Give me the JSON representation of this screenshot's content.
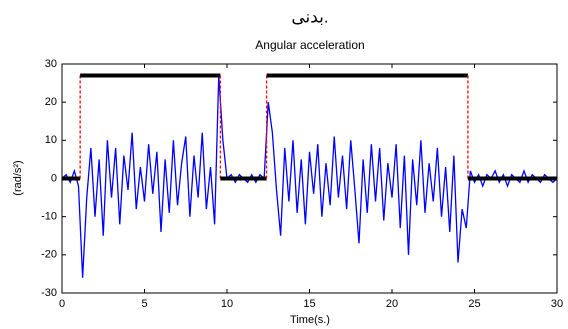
{
  "chart_data": {
    "type": "line",
    "title": "بدنی.",
    "subtitle": "Angular acceleration",
    "x_label": "Time(s.)",
    "y_label": "(rad/s²)",
    "xlim": [
      0,
      30
    ],
    "xticks": [
      0,
      5,
      10,
      15,
      20,
      25,
      30
    ],
    "ylim": [
      -30,
      30
    ],
    "yticks": [
      -30,
      -20,
      -10,
      0,
      10,
      20,
      30
    ],
    "series": [
      {
        "color": "#0000ff",
        "x": [
          0,
          0.25,
          0.5,
          0.75,
          1,
          1.25,
          1.5,
          1.75,
          2,
          2.25,
          2.5,
          2.75,
          3,
          3.25,
          3.5,
          3.75,
          4,
          4.25,
          4.5,
          4.75,
          5,
          5.25,
          5.5,
          5.75,
          6,
          6.25,
          6.5,
          6.75,
          7,
          7.25,
          7.5,
          7.75,
          8,
          8.25,
          8.5,
          8.75,
          9,
          9.25,
          9.5,
          9.75,
          10,
          10.25,
          10.5,
          10.75,
          11,
          11.25,
          11.5,
          11.75,
          12,
          12.25,
          12.5,
          12.75,
          13,
          13.25,
          13.5,
          13.75,
          14,
          14.25,
          14.5,
          14.75,
          15,
          15.25,
          15.5,
          15.75,
          16,
          16.25,
          16.5,
          16.75,
          17,
          17.25,
          17.5,
          17.75,
          18,
          18.25,
          18.5,
          18.75,
          19,
          19.25,
          19.5,
          19.75,
          20,
          20.25,
          20.5,
          20.75,
          21,
          21.25,
          21.5,
          21.75,
          22,
          22.25,
          22.5,
          22.75,
          23,
          23.25,
          23.5,
          23.75,
          24,
          24.25,
          24.5,
          24.75,
          25,
          25.25,
          25.5,
          25.75,
          26,
          26.25,
          26.5,
          26.75,
          27,
          27.25,
          27.5,
          27.75,
          28,
          28.25,
          28.5,
          28.75,
          29,
          29.25,
          29.5,
          29.75,
          30
        ],
        "values": [
          0,
          1,
          -1,
          2,
          -2,
          -26,
          -5,
          8,
          -10,
          5,
          -15,
          10,
          -5,
          8,
          -12,
          6,
          -3,
          12,
          -8,
          3,
          -6,
          9,
          -4,
          7,
          -14,
          5,
          -9,
          10,
          -7,
          4,
          11,
          -10,
          6,
          -5,
          12,
          -8,
          3,
          -12,
          27,
          10,
          0,
          1,
          -1,
          1,
          0,
          -1,
          1,
          -1,
          1,
          0,
          20,
          12,
          -3,
          -15,
          8,
          -6,
          10,
          -9,
          5,
          -12,
          7,
          -4,
          9,
          -10,
          4,
          -7,
          11,
          -5,
          6,
          -8,
          10,
          -3,
          -17,
          5,
          -9,
          9,
          -6,
          8,
          -11,
          4,
          -5,
          9,
          -13,
          6,
          -20,
          5,
          -7,
          10,
          -9,
          4,
          -6,
          8,
          -10,
          3,
          -14,
          6,
          -22,
          -8,
          -13,
          2,
          -1,
          1,
          -2,
          1,
          0,
          2,
          -1,
          1,
          -2,
          1,
          0,
          -1,
          2,
          -1,
          1,
          0,
          -1,
          1,
          0,
          -1,
          0
        ]
      },
      {
        "color": "#000000",
        "transition_color": "#ff0000",
        "x": [
          0,
          1.1,
          1.1,
          9.6,
          9.6,
          12.4,
          12.4,
          24.6,
          24.6,
          30
        ],
        "values": [
          0,
          0,
          27,
          27,
          0,
          0,
          27,
          27,
          0,
          0
        ]
      }
    ]
  }
}
